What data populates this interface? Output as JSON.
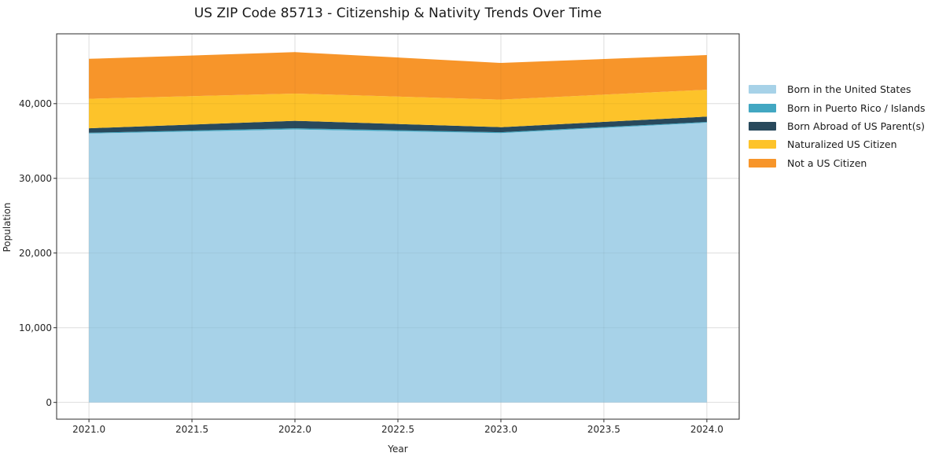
{
  "title": "US ZIP Code 85713 - Citizenship & Nativity Trends Over Time",
  "chart_data": {
    "type": "area",
    "stacked": true,
    "title": "US ZIP Code 85713 - Citizenship & Nativity Trends Over Time",
    "xlabel": "Year",
    "ylabel": "Population",
    "x": [
      2021,
      2022,
      2023,
      2024
    ],
    "series": [
      {
        "name": "Born in the United States",
        "color": "#A7D2E8",
        "values": [
          36000,
          36550,
          36050,
          37450
        ]
      },
      {
        "name": "Born in Puerto Rico / Islands",
        "color": "#42A7C2",
        "values": [
          100,
          150,
          130,
          110
        ]
      },
      {
        "name": "Born Abroad of US Parent(s)",
        "color": "#28495C",
        "values": [
          600,
          1000,
          670,
          700
        ]
      },
      {
        "name": "Naturalized US Citizen",
        "color": "#FDC32A",
        "values": [
          3950,
          3650,
          3700,
          3600
        ]
      },
      {
        "name": "Not a US Citizen",
        "color": "#F7952A",
        "values": [
          5350,
          5550,
          4900,
          4650
        ]
      }
    ],
    "x_ticks": [
      2021.0,
      2021.5,
      2022.0,
      2022.5,
      2023.0,
      2023.5,
      2024.0
    ],
    "x_tick_labels": [
      "2021.0",
      "2021.5",
      "2022.0",
      "2022.5",
      "2023.0",
      "2023.5",
      "2024.0"
    ],
    "y_ticks": [
      0,
      10000,
      20000,
      30000,
      40000
    ],
    "y_tick_labels": [
      "0",
      "10,000",
      "20,000",
      "30,000",
      "40,000"
    ],
    "xlim": [
      2020.843,
      2024.157
    ],
    "ylim": [
      -2245,
      49350
    ],
    "grid": true,
    "legend_position": "right-outside",
    "grid_color": "#E9E9E9",
    "spine_color": "#2b2b2b"
  }
}
